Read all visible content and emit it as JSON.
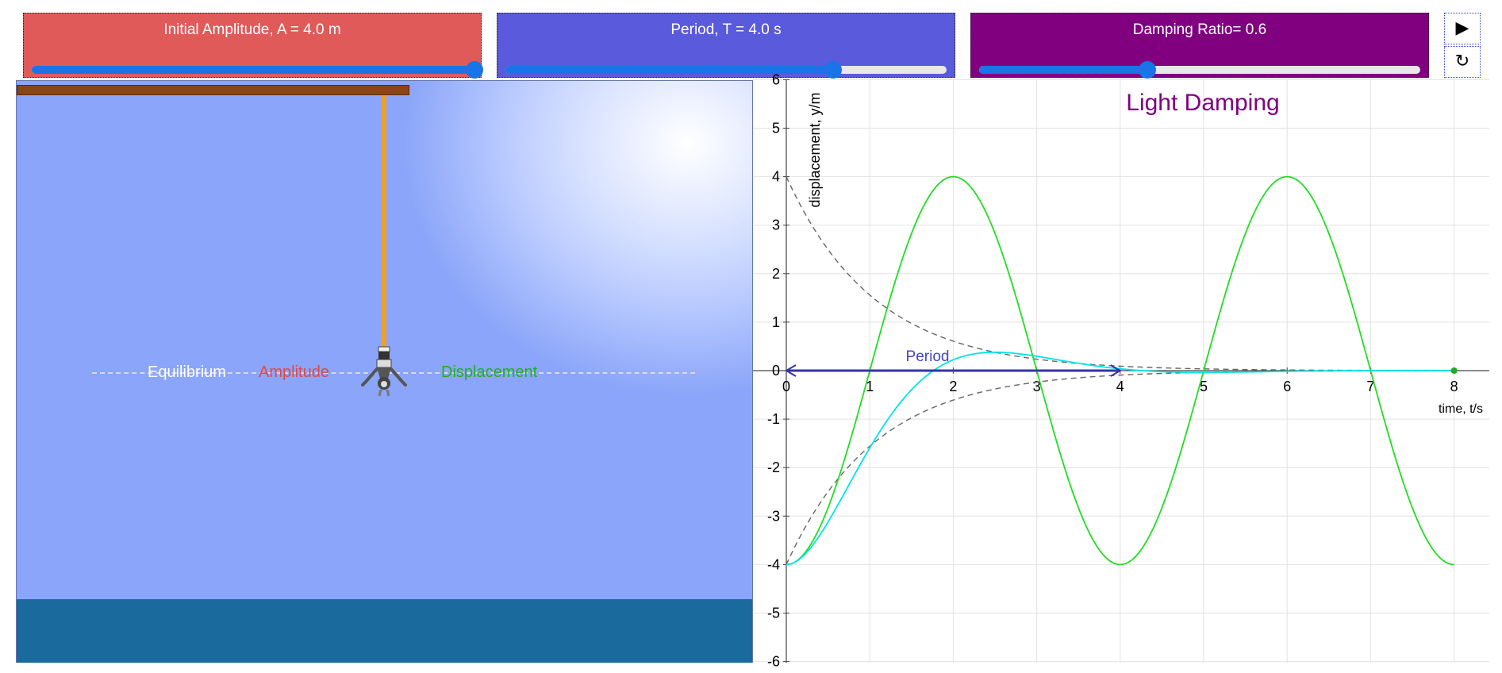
{
  "controls": {
    "amplitude": {
      "label": "Initial Amplitude, A = 4.0 m",
      "value": 4.0,
      "fraction": 1.0
    },
    "period": {
      "label": "Period, T = 4.0 s",
      "value": 4.0,
      "fraction": 0.74
    },
    "damping": {
      "label": "Damping Ratio= 0.6",
      "value": 0.6,
      "fraction": 0.38
    },
    "play_icon": "play-icon",
    "reset_icon": "reset-icon",
    "play_glyph": "▶",
    "reset_glyph": "↻"
  },
  "scene": {
    "equilibrium_label": "Equilibrium",
    "amplitude_label": "Amplitude",
    "displacement_label": "Displacement"
  },
  "chart_data": {
    "type": "line",
    "title": "Light Damping",
    "xlabel": "time, t/s",
    "ylabel": "displacement, y/m",
    "xlim": [
      0,
      8
    ],
    "ylim": [
      -6,
      6
    ],
    "x_ticks": [
      0,
      1,
      2,
      3,
      4,
      5,
      6,
      7,
      8
    ],
    "y_ticks": [
      -6,
      -5,
      -4,
      -3,
      -2,
      -1,
      0,
      1,
      2,
      3,
      4,
      5,
      6
    ],
    "grid": true,
    "annotation": {
      "text": "Period",
      "from": 0,
      "to": 4
    },
    "amplitude": 4.0,
    "period": 4.0,
    "damping_ratio": 0.6,
    "colors": {
      "undamped": "#22dd22",
      "damped": "#00e5e5",
      "envelope": "#666666",
      "period_arrow": "#3333aa",
      "title": "#800080"
    }
  }
}
